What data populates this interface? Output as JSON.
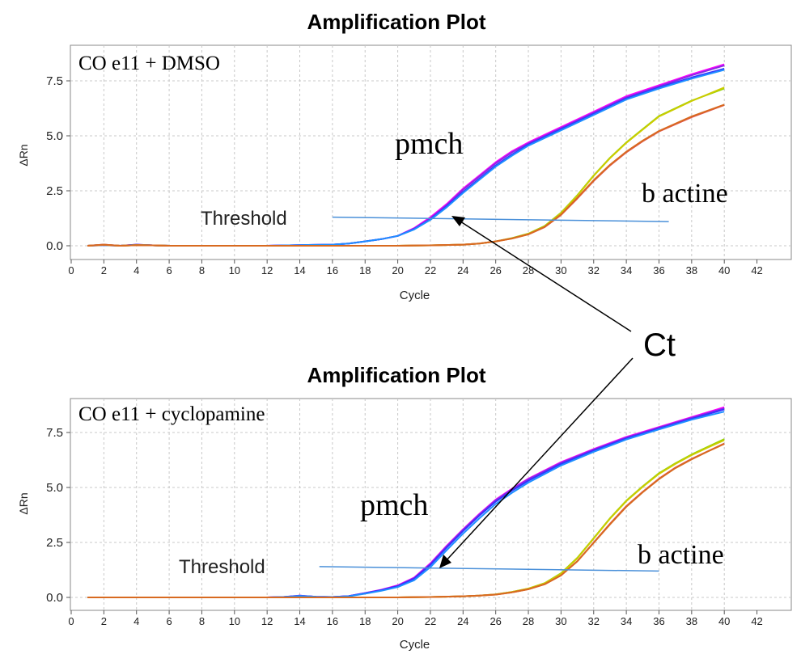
{
  "shared": {
    "callout_label": "Ct",
    "curve_colors": [
      "#ff00ff",
      "#8a2be2",
      "#3333ff",
      "#1e90ff",
      "#00cccc",
      "#8fd400",
      "#cccc00",
      "#e05050",
      "#d86a20"
    ],
    "threshold_color": "#4a90d9",
    "arrow_color": "#000000"
  },
  "chart_data": [
    {
      "type": "line",
      "title": "Amplification Plot",
      "condition_label": "CO e11 + DMSO",
      "xlabel": "Cycle",
      "ylabel": "ΔRn",
      "xlim": [
        0,
        42
      ],
      "ylim": [
        -0.3,
        8.6
      ],
      "x_ticks": [
        "0",
        "2",
        "4",
        "6",
        "8",
        "10",
        "12",
        "14",
        "16",
        "18",
        "20",
        "22",
        "24",
        "26",
        "28",
        "30",
        "32",
        "34",
        "36",
        "38",
        "40",
        "42"
      ],
      "y_ticks": [
        "0.0",
        "2.5",
        "5.0",
        "7.5"
      ],
      "grid": true,
      "threshold": {
        "label": "Threshold",
        "x": [
          16,
          36.6
        ],
        "y": [
          1.3,
          1.1
        ]
      },
      "annotations": [
        {
          "text": "pmch"
        },
        {
          "text": "b actine"
        }
      ],
      "series": [
        {
          "group": "pmch",
          "x": [
            1,
            2,
            3,
            4,
            5,
            6,
            8,
            10,
            12,
            14,
            16,
            17,
            18,
            19,
            20,
            21,
            22,
            23,
            24,
            25,
            26,
            27,
            28,
            30,
            32,
            34,
            36,
            38,
            40
          ],
          "y": [
            0,
            0.05,
            0,
            0.05,
            0.02,
            0,
            0,
            0,
            0,
            0.03,
            0.05,
            0.1,
            0.2,
            0.3,
            0.45,
            0.8,
            1.3,
            1.9,
            2.6,
            3.2,
            3.8,
            4.3,
            4.7,
            5.4,
            6.1,
            6.8,
            7.3,
            7.8,
            8.25
          ]
        },
        {
          "group": "pmch",
          "x": [
            1,
            2,
            3,
            4,
            5,
            6,
            8,
            10,
            12,
            14,
            16,
            17,
            18,
            19,
            20,
            21,
            22,
            23,
            24,
            25,
            26,
            27,
            28,
            30,
            32,
            34,
            36,
            38,
            40
          ],
          "y": [
            0,
            0.03,
            0,
            0.04,
            0.02,
            0,
            0,
            0,
            0,
            0.03,
            0.05,
            0.1,
            0.2,
            0.3,
            0.45,
            0.78,
            1.25,
            1.85,
            2.55,
            3.15,
            3.75,
            4.25,
            4.65,
            5.35,
            6.05,
            6.75,
            7.25,
            7.75,
            8.2
          ]
        },
        {
          "group": "pmch",
          "x": [
            1,
            2,
            3,
            4,
            5,
            6,
            8,
            10,
            12,
            14,
            16,
            17,
            18,
            19,
            20,
            21,
            22,
            23,
            24,
            25,
            26,
            27,
            28,
            30,
            32,
            34,
            36,
            38,
            40
          ],
          "y": [
            0,
            0.04,
            0,
            0.05,
            0.02,
            0,
            0,
            0,
            0,
            0.03,
            0.05,
            0.1,
            0.2,
            0.3,
            0.45,
            0.76,
            1.2,
            1.8,
            2.45,
            3.05,
            3.65,
            4.15,
            4.6,
            5.3,
            6,
            6.7,
            7.2,
            7.65,
            8.05
          ]
        },
        {
          "group": "pmch",
          "x": [
            1,
            2,
            3,
            4,
            5,
            6,
            8,
            10,
            12,
            14,
            16,
            17,
            18,
            19,
            20,
            21,
            22,
            23,
            24,
            25,
            26,
            27,
            28,
            30,
            32,
            34,
            36,
            38,
            40
          ],
          "y": [
            0,
            0.03,
            0,
            0.04,
            0.02,
            0,
            0,
            0,
            0,
            0.03,
            0.05,
            0.1,
            0.2,
            0.3,
            0.45,
            0.74,
            1.18,
            1.75,
            2.4,
            3,
            3.6,
            4.1,
            4.55,
            5.25,
            5.95,
            6.65,
            7.15,
            7.6,
            8.0
          ]
        },
        {
          "group": "b actine",
          "x": [
            1,
            2,
            3,
            4,
            5,
            6,
            8,
            10,
            12,
            14,
            16,
            18,
            20,
            22,
            24,
            25,
            26,
            27,
            28,
            29,
            30,
            31,
            32,
            33,
            34,
            35,
            36,
            38,
            40
          ],
          "y": [
            0,
            0.05,
            0,
            0.03,
            0.02,
            0,
            0,
            0,
            0,
            0,
            0,
            0,
            0,
            0.02,
            0.05,
            0.1,
            0.2,
            0.35,
            0.55,
            0.9,
            1.5,
            2.3,
            3.2,
            4,
            4.7,
            5.3,
            5.9,
            6.6,
            7.15
          ]
        },
        {
          "group": "b actine",
          "x": [
            1,
            2,
            3,
            4,
            5,
            6,
            8,
            10,
            12,
            14,
            16,
            18,
            20,
            22,
            24,
            25,
            26,
            27,
            28,
            29,
            30,
            31,
            32,
            33,
            34,
            35,
            36,
            38,
            40
          ],
          "y": [
            0,
            0.04,
            0,
            0.03,
            0.02,
            0,
            0,
            0,
            0,
            0,
            0,
            0,
            0,
            0.02,
            0.05,
            0.1,
            0.2,
            0.34,
            0.54,
            0.88,
            1.48,
            2.28,
            3.18,
            3.98,
            4.68,
            5.28,
            5.88,
            6.58,
            7.2
          ]
        },
        {
          "group": "b actine",
          "x": [
            1,
            2,
            3,
            4,
            5,
            6,
            8,
            10,
            12,
            14,
            16,
            18,
            20,
            22,
            24,
            25,
            26,
            27,
            28,
            29,
            30,
            31,
            32,
            33,
            34,
            35,
            36,
            38,
            40
          ],
          "y": [
            0,
            0.05,
            0,
            0.03,
            0.02,
            0,
            0,
            0,
            0,
            0,
            0,
            0,
            0,
            0.02,
            0.05,
            0.1,
            0.2,
            0.33,
            0.52,
            0.85,
            1.4,
            2.15,
            2.95,
            3.65,
            4.25,
            4.75,
            5.2,
            5.85,
            6.4
          ]
        },
        {
          "group": "b actine",
          "x": [
            1,
            2,
            3,
            4,
            5,
            6,
            8,
            10,
            12,
            14,
            16,
            18,
            20,
            22,
            24,
            25,
            26,
            27,
            28,
            29,
            30,
            31,
            32,
            33,
            34,
            35,
            36,
            38,
            40
          ],
          "y": [
            0,
            0.04,
            0,
            0.03,
            0.02,
            0,
            0,
            0,
            0,
            0,
            0,
            0,
            0,
            0.02,
            0.05,
            0.1,
            0.2,
            0.33,
            0.52,
            0.86,
            1.42,
            2.18,
            2.98,
            3.68,
            4.28,
            4.78,
            5.22,
            5.88,
            6.42
          ]
        }
      ]
    },
    {
      "type": "line",
      "title": "Amplification Plot",
      "condition_label": "CO e11 + cyclopamine",
      "xlabel": "Cycle",
      "ylabel": "ΔRn",
      "xlim": [
        0,
        42
      ],
      "ylim": [
        -0.3,
        8.8
      ],
      "x_ticks": [
        "0",
        "2",
        "4",
        "6",
        "8",
        "10",
        "12",
        "14",
        "16",
        "18",
        "20",
        "22",
        "24",
        "26",
        "28",
        "30",
        "32",
        "34",
        "36",
        "38",
        "40",
        "42"
      ],
      "y_ticks": [
        "0.0",
        "2.5",
        "5.0",
        "7.5"
      ],
      "grid": true,
      "threshold": {
        "label": "Threshold",
        "x": [
          15.2,
          36.0
        ],
        "y": [
          1.4,
          1.2
        ]
      },
      "annotations": [
        {
          "text": "pmch"
        },
        {
          "text": "b actine"
        }
      ],
      "series": [
        {
          "group": "pmch",
          "x": [
            1,
            4,
            8,
            12,
            13,
            14,
            15,
            16,
            17,
            18,
            19,
            20,
            21,
            22,
            23,
            24,
            25,
            26,
            27,
            28,
            30,
            32,
            34,
            36,
            38,
            40
          ],
          "y": [
            0,
            0,
            0,
            0,
            0.02,
            0.08,
            0.03,
            0.02,
            0.06,
            0.2,
            0.35,
            0.55,
            0.9,
            1.55,
            2.35,
            3.1,
            3.8,
            4.45,
            4.95,
            5.4,
            6.15,
            6.75,
            7.3,
            7.75,
            8.2,
            8.65
          ]
        },
        {
          "group": "pmch",
          "x": [
            1,
            4,
            8,
            12,
            13,
            14,
            15,
            16,
            17,
            18,
            19,
            20,
            21,
            22,
            23,
            24,
            25,
            26,
            27,
            28,
            30,
            32,
            34,
            36,
            38,
            40
          ],
          "y": [
            0,
            0,
            0,
            0,
            0.02,
            0.08,
            0.03,
            0.02,
            0.06,
            0.2,
            0.34,
            0.53,
            0.88,
            1.52,
            2.32,
            3.07,
            3.77,
            4.42,
            4.92,
            5.37,
            6.12,
            6.72,
            7.27,
            7.72,
            8.17,
            8.6
          ]
        },
        {
          "group": "pmch",
          "x": [
            1,
            4,
            8,
            12,
            13,
            14,
            15,
            16,
            17,
            18,
            19,
            20,
            21,
            22,
            23,
            24,
            25,
            26,
            27,
            28,
            30,
            32,
            34,
            36,
            38,
            40
          ],
          "y": [
            0,
            0,
            0,
            0,
            0.02,
            0.07,
            0.03,
            0.02,
            0.06,
            0.19,
            0.33,
            0.51,
            0.85,
            1.48,
            2.27,
            3.02,
            3.72,
            4.36,
            4.86,
            5.31,
            6.07,
            6.68,
            7.23,
            7.68,
            8.12,
            8.55
          ]
        },
        {
          "group": "pmch",
          "x": [
            1,
            4,
            8,
            12,
            13,
            14,
            15,
            16,
            17,
            18,
            19,
            20,
            21,
            22,
            23,
            24,
            25,
            26,
            27,
            28,
            30,
            32,
            34,
            36,
            38,
            40
          ],
          "y": [
            0,
            0,
            0,
            0,
            0.02,
            0.07,
            0.03,
            0.02,
            0.05,
            0.17,
            0.3,
            0.47,
            0.78,
            1.38,
            2.15,
            2.9,
            3.6,
            4.25,
            4.76,
            5.22,
            6,
            6.62,
            7.18,
            7.64,
            8.08,
            8.45
          ]
        },
        {
          "group": "b actine",
          "x": [
            1,
            4,
            8,
            12,
            16,
            20,
            22,
            24,
            25,
            26,
            27,
            28,
            29,
            30,
            31,
            32,
            33,
            34,
            35,
            36,
            37,
            38,
            39,
            40
          ],
          "y": [
            0,
            0,
            0,
            0,
            0,
            0,
            0.02,
            0.05,
            0.08,
            0.14,
            0.25,
            0.4,
            0.65,
            1.1,
            1.8,
            2.7,
            3.6,
            4.4,
            5.05,
            5.65,
            6.1,
            6.5,
            6.85,
            7.2
          ]
        },
        {
          "group": "b actine",
          "x": [
            1,
            4,
            8,
            12,
            16,
            20,
            22,
            24,
            25,
            26,
            27,
            28,
            29,
            30,
            31,
            32,
            33,
            34,
            35,
            36,
            37,
            38,
            39,
            40
          ],
          "y": [
            0,
            0,
            0,
            0,
            0,
            0,
            0.02,
            0.05,
            0.08,
            0.14,
            0.25,
            0.4,
            0.64,
            1.08,
            1.78,
            2.68,
            3.58,
            4.38,
            5.03,
            5.62,
            6.07,
            6.47,
            6.82,
            7.15
          ]
        },
        {
          "group": "b actine",
          "x": [
            1,
            4,
            8,
            12,
            16,
            20,
            22,
            24,
            25,
            26,
            27,
            28,
            29,
            30,
            31,
            32,
            33,
            34,
            35,
            36,
            37,
            38,
            39,
            40
          ],
          "y": [
            0,
            0,
            0,
            0,
            0,
            0,
            0.02,
            0.05,
            0.08,
            0.13,
            0.23,
            0.37,
            0.6,
            1.0,
            1.65,
            2.5,
            3.35,
            4.15,
            4.8,
            5.4,
            5.9,
            6.3,
            6.65,
            7.0
          ]
        },
        {
          "group": "b actine",
          "x": [
            1,
            4,
            8,
            12,
            16,
            20,
            22,
            24,
            25,
            26,
            27,
            28,
            29,
            30,
            31,
            32,
            33,
            34,
            35,
            36,
            37,
            38,
            39,
            40
          ],
          "y": [
            0,
            0,
            0,
            0,
            0,
            0,
            0.02,
            0.05,
            0.08,
            0.13,
            0.23,
            0.37,
            0.6,
            1.0,
            1.64,
            2.48,
            3.32,
            4.12,
            4.78,
            5.38,
            5.88,
            6.28,
            6.64,
            6.98
          ]
        }
      ]
    }
  ]
}
